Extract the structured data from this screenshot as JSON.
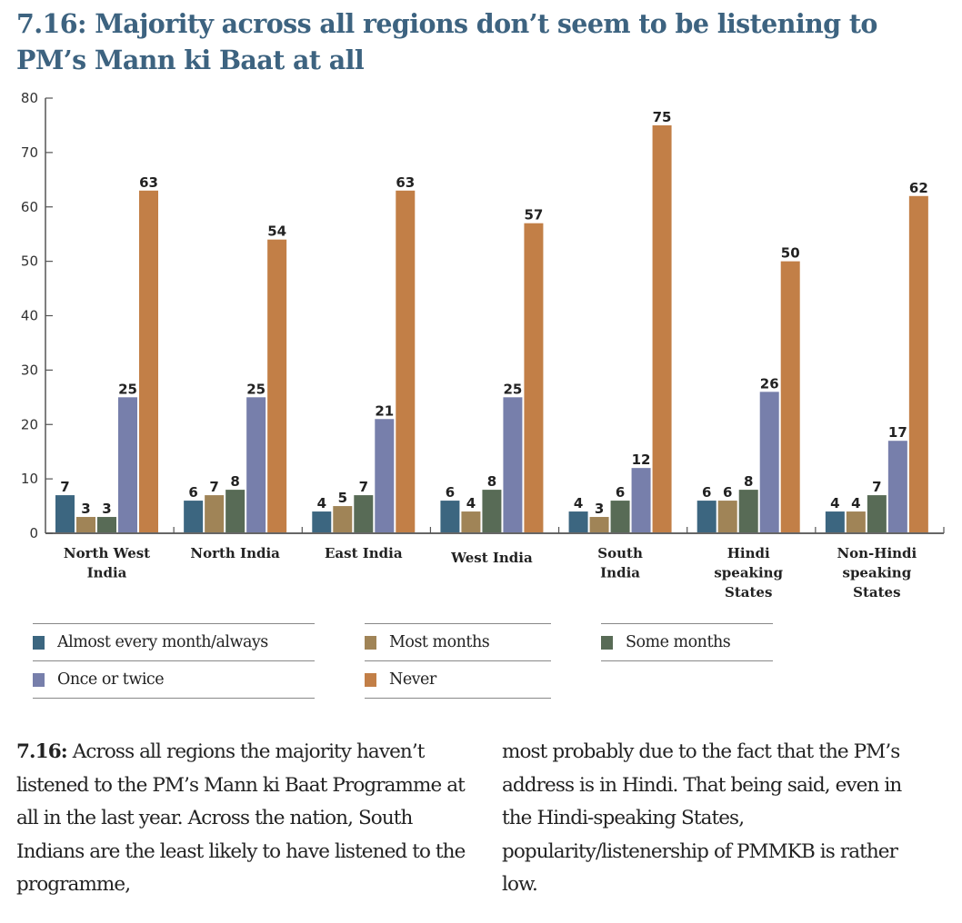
{
  "title": "7.16: Majority across all regions don’t seem to be listening to PM’s Mann ki Baat at all",
  "chart_data": {
    "type": "bar",
    "title": "7.16: Majority across all regions don’t seem to be listening to PM’s Mann ki Baat at all",
    "xlabel": "",
    "ylabel": "",
    "ylim": [
      0,
      80
    ],
    "yticks": [
      0,
      10,
      20,
      30,
      40,
      50,
      60,
      70,
      80
    ],
    "grid": false,
    "legend_position": "bottom",
    "categories": [
      [
        "North West",
        "India"
      ],
      [
        "North India"
      ],
      [
        "East India"
      ],
      [
        "West India"
      ],
      [
        "South",
        "India"
      ],
      [
        "Hindi",
        "speaking",
        "States"
      ],
      [
        "Non-Hindi",
        "speaking",
        "States"
      ]
    ],
    "series": [
      {
        "name": "Almost every month/always",
        "color": "#3c6680",
        "values": [
          7,
          6,
          4,
          6,
          4,
          6,
          4
        ]
      },
      {
        "name": "Most months",
        "color": "#a08457",
        "values": [
          3,
          7,
          5,
          4,
          3,
          6,
          4
        ]
      },
      {
        "name": "Some months",
        "color": "#586b56",
        "values": [
          3,
          8,
          7,
          8,
          6,
          8,
          7
        ]
      },
      {
        "name": "Once or twice",
        "color": "#777fab",
        "values": [
          25,
          25,
          21,
          25,
          12,
          26,
          17
        ]
      },
      {
        "name": "Never",
        "color": "#c27f47",
        "values": [
          63,
          54,
          63,
          57,
          75,
          50,
          62
        ]
      }
    ]
  },
  "legend": [
    {
      "label": "Almost every month/always",
      "color": "#3c6680"
    },
    {
      "label": "Most months",
      "color": "#a08457"
    },
    {
      "label": "Some months",
      "color": "#586b56"
    },
    {
      "label": "Once or twice",
      "color": "#777fab"
    },
    {
      "label": "Never",
      "color": "#c27f47"
    }
  ],
  "caption": {
    "ref": "7.16:",
    "col1": " Across all regions the majority haven’t listened to the PM’s Mann ki Baat Programme at all in the last year. Across the nation, South Indians are the least likely to have listened to the programme,",
    "col2": "most probably due to the fact that the PM’s address is in Hindi. That being said, even in the Hindi-speaking States, popularity/listenership of PMMKB is rather low."
  }
}
